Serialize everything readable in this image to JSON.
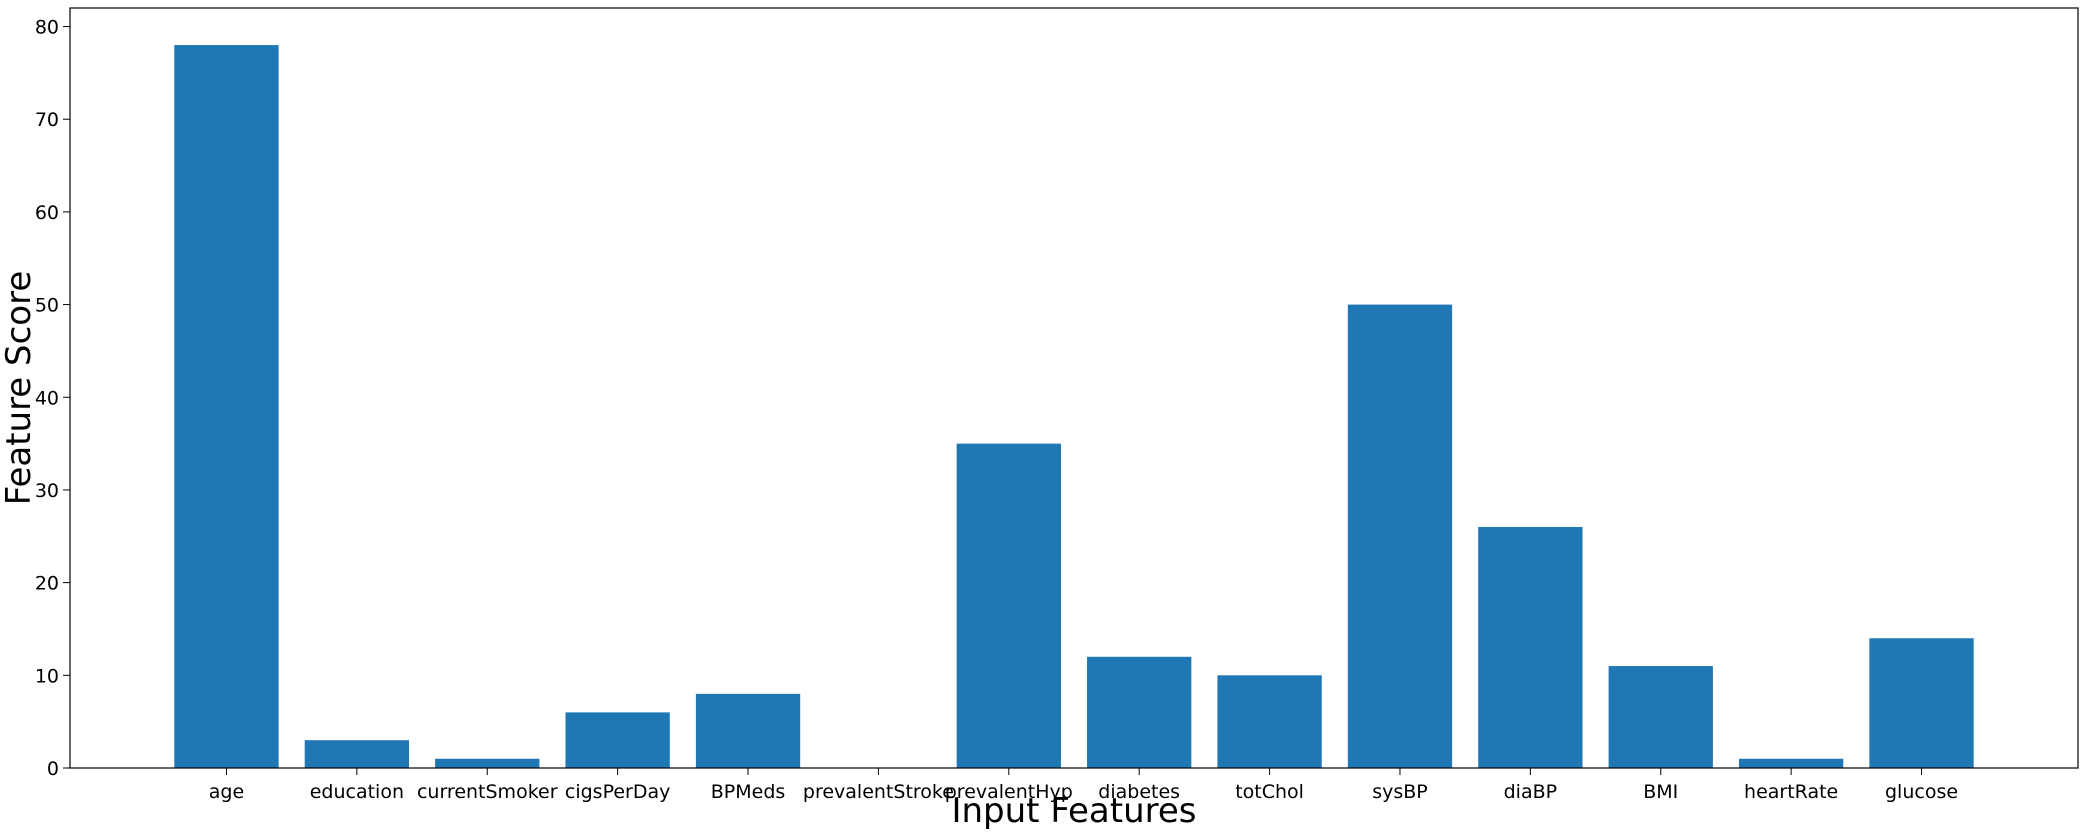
{
  "chart_data": {
    "type": "bar",
    "title": "",
    "xlabel": "Input Features",
    "ylabel": "Feature Score",
    "categories": [
      "age",
      "education",
      "currentSmoker",
      "cigsPerDay",
      "BPMeds",
      "prevalentStroke",
      "prevalentHyp",
      "diabetes",
      "totChol",
      "sysBP",
      "diaBP",
      "BMI",
      "heartRate",
      "glucose"
    ],
    "values": [
      78,
      3,
      1,
      6,
      8,
      0,
      35,
      12,
      10,
      50,
      26,
      11,
      1,
      14
    ],
    "ylim": [
      0,
      82
    ],
    "yticks": [
      0,
      10,
      20,
      30,
      40,
      50,
      60,
      70,
      80
    ],
    "grid": false,
    "legend": "none",
    "bar_color": "#1f77b4"
  }
}
